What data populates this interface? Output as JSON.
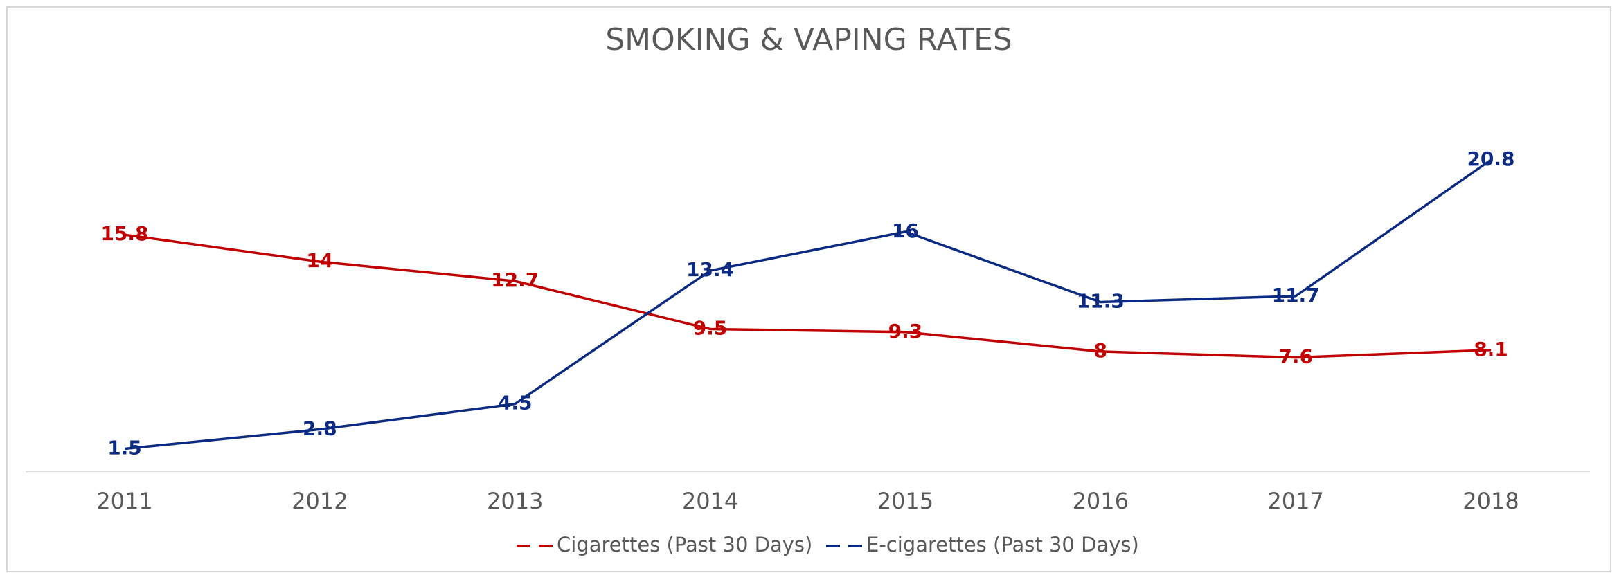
{
  "chart_data": {
    "type": "line",
    "title": "SMOKING & VAPING RATES",
    "categories": [
      "2011",
      "2012",
      "2013",
      "2014",
      "2015",
      "2016",
      "2017",
      "2018"
    ],
    "series": [
      {
        "name": "Cigarettes (Past 30 Days)",
        "color": "#c00000",
        "values": [
          15.8,
          14,
          12.7,
          9.5,
          9.3,
          8,
          7.6,
          8.1
        ]
      },
      {
        "name": "E-cigarettes (Past 30 Days)",
        "color": "#0b2a82",
        "values": [
          1.5,
          2.8,
          4.5,
          13.4,
          16,
          11.3,
          11.7,
          20.8
        ]
      }
    ],
    "legend": "bottom",
    "grid": false
  }
}
